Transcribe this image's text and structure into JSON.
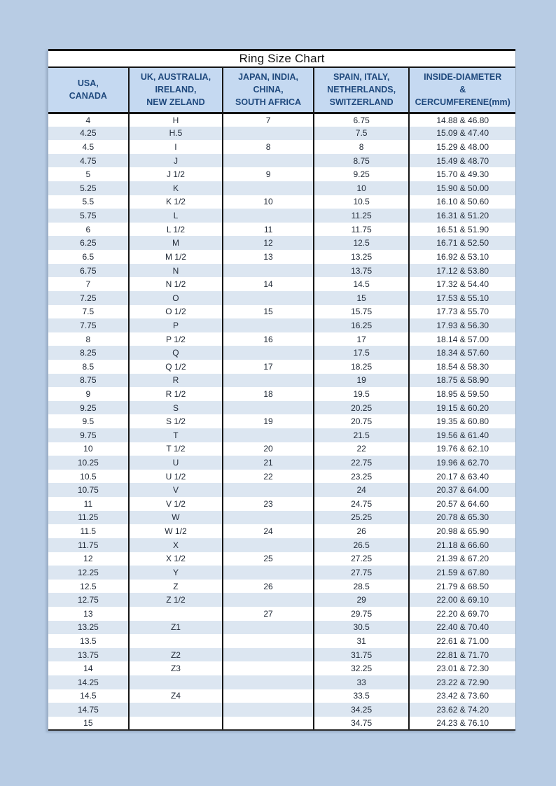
{
  "page": {
    "background_color": "#b8cce4",
    "title_bar_color": "#ffffff",
    "header_bg_color": "#c5d9f1",
    "stripe_color": "#dce6f1",
    "header_text_color": "#1f497d",
    "data_text_color": "#222b38",
    "border_color": "#141414"
  },
  "table": {
    "title": "Ring Size Chart",
    "headers": [
      "USA,\nCANADA",
      "UK, AUSTRALIA,\nIRELAND,\nNEW ZELAND",
      "JAPAN, INDIA,\nCHINA,\nSOUTH AFRICA",
      "SPAIN, ITALY,\nNETHERLANDS,\nSWITZERLAND",
      "INSIDE-DIAMETER\n&\nCERCUMFERENE(mm)"
    ],
    "rows": [
      [
        "4",
        "H",
        "7",
        "6.75",
        "14.88 & 46.80"
      ],
      [
        "4.25",
        "H.5",
        "",
        "7.5",
        "15.09 & 47.40"
      ],
      [
        "4.5",
        "I",
        "8",
        "8",
        "15.29 & 48.00"
      ],
      [
        "4.75",
        "J",
        "",
        "8.75",
        "15.49 & 48.70"
      ],
      [
        "5",
        "J 1/2",
        "9",
        "9.25",
        "15.70 & 49.30"
      ],
      [
        "5.25",
        "K",
        "",
        "10",
        "15.90 & 50.00"
      ],
      [
        "5.5",
        "K 1/2",
        "10",
        "10.5",
        "16.10 & 50.60"
      ],
      [
        "5.75",
        "L",
        "",
        "11.25",
        "16.31 & 51.20"
      ],
      [
        "6",
        "L 1/2",
        "11",
        "11.75",
        "16.51 & 51.90"
      ],
      [
        "6.25",
        "M",
        "12",
        "12.5",
        "16.71 & 52.50"
      ],
      [
        "6.5",
        "M 1/2",
        "13",
        "13.25",
        "16.92 & 53.10"
      ],
      [
        "6.75",
        "N",
        "",
        "13.75",
        "17.12 & 53.80"
      ],
      [
        "7",
        "N 1/2",
        "14",
        "14.5",
        "17.32 & 54.40"
      ],
      [
        "7.25",
        "O",
        "",
        "15",
        "17.53 & 55.10"
      ],
      [
        "7.5",
        "O 1/2",
        "15",
        "15.75",
        "17.73 & 55.70"
      ],
      [
        "7.75",
        "P",
        "",
        "16.25",
        "17.93 & 56.30"
      ],
      [
        "8",
        "P 1/2",
        "16",
        "17",
        "18.14 & 57.00"
      ],
      [
        "8.25",
        "Q",
        "",
        "17.5",
        "18.34 & 57.60"
      ],
      [
        "8.5",
        "Q 1/2",
        "17",
        "18.25",
        "18.54 & 58.30"
      ],
      [
        "8.75",
        "R",
        "",
        "19",
        "18.75 & 58.90"
      ],
      [
        "9",
        "R 1/2",
        "18",
        "19.5",
        "18.95 & 59.50"
      ],
      [
        "9.25",
        "S",
        "",
        "20.25",
        "19.15 & 60.20"
      ],
      [
        "9.5",
        "S 1/2",
        "19",
        "20.75",
        "19.35 & 60.80"
      ],
      [
        "9.75",
        "T",
        "",
        "21.5",
        "19.56 & 61.40"
      ],
      [
        "10",
        "T 1/2",
        "20",
        "22",
        "19.76 & 62.10"
      ],
      [
        "10.25",
        "U",
        "21",
        "22.75",
        "19.96 & 62.70"
      ],
      [
        "10.5",
        "U 1/2",
        "22",
        "23.25",
        "20.17 & 63.40"
      ],
      [
        "10.75",
        "V",
        "",
        "24",
        "20.37 & 64.00"
      ],
      [
        "11",
        "V 1/2",
        "23",
        "24.75",
        "20.57 & 64.60"
      ],
      [
        "11.25",
        "W",
        "",
        "25.25",
        "20.78 & 65.30"
      ],
      [
        "11.5",
        "W 1/2",
        "24",
        "26",
        "20.98 & 65.90"
      ],
      [
        "11.75",
        "X",
        "",
        "26.5",
        "21.18 & 66.60"
      ],
      [
        "12",
        "X 1/2",
        "25",
        "27.25",
        "21.39 & 67.20"
      ],
      [
        "12.25",
        "Y",
        "",
        "27.75",
        "21.59 & 67.80"
      ],
      [
        "12.5",
        "Z",
        "26",
        "28.5",
        "21.79 & 68.50"
      ],
      [
        "12.75",
        "Z 1/2",
        "",
        "29",
        "22.00 & 69.10"
      ],
      [
        "13",
        "",
        "27",
        "29.75",
        "22.20 & 69.70"
      ],
      [
        "13.25",
        "Z1",
        "",
        "30.5",
        "22.40 & 70.40"
      ],
      [
        "13.5",
        "",
        "",
        "31",
        "22.61 & 71.00"
      ],
      [
        "13.75",
        "Z2",
        "",
        "31.75",
        "22.81 & 71.70"
      ],
      [
        "14",
        "Z3",
        "",
        "32.25",
        "23.01 & 72.30"
      ],
      [
        "14.25",
        "",
        "",
        "33",
        "23.22 & 72.90"
      ],
      [
        "14.5",
        "Z4",
        "",
        "33.5",
        "23.42 & 73.60"
      ],
      [
        "14.75",
        "",
        "",
        "34.25",
        "23.62 & 74.20"
      ],
      [
        "15",
        "",
        "",
        "34.75",
        "24.23 & 76.10"
      ]
    ]
  }
}
